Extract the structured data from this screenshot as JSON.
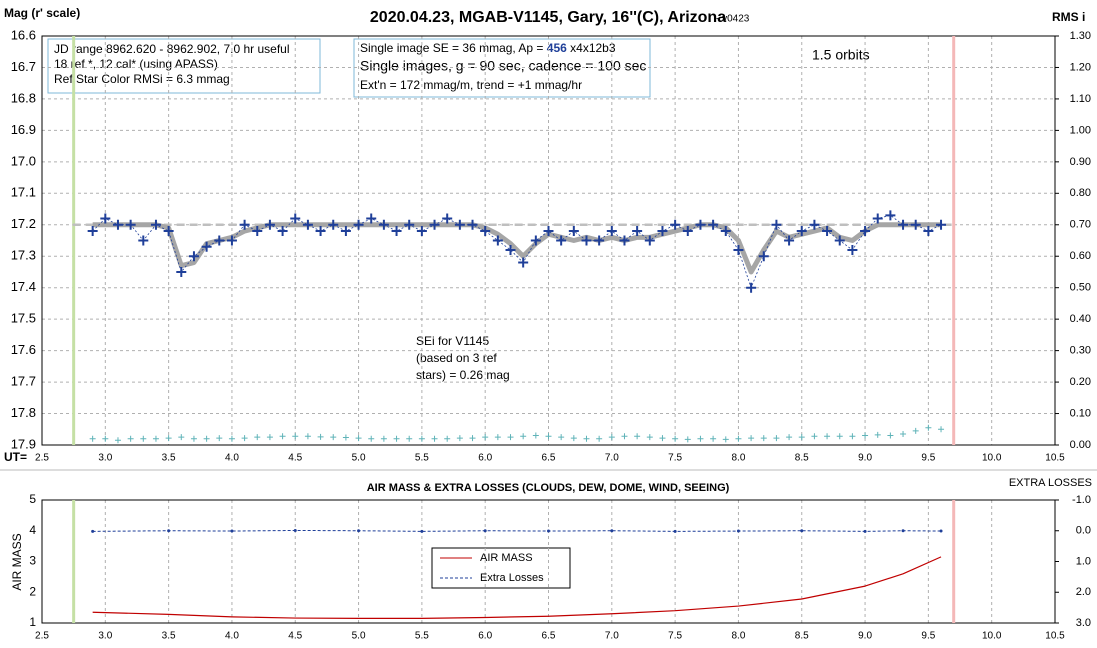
{
  "chart_data": [
    {
      "type": "scatter",
      "title": "2020.04.23, MGAB-V1145, Gary, 16''(C), Arizona",
      "title_suffix": " - v0423",
      "ylabel": "Mag (r' scale)",
      "y2label": "RMS i",
      "xlabel": "UT=",
      "info_box": [
        "JD range 8962.620 - 8962.902, 7.0 hr useful",
        "18 ref *, 12 cal* (using APASS)",
        "Ref Star Color RMSi = 6.3 mmag"
      ],
      "se_box": [
        "Single image SE = 36 mmag, Ap = ",
        "456",
        " x4x12b3"
      ],
      "se_lines": [
        "Single images, g = 90 sec, cadence = 100 sec",
        "Ext'n = 172 mmag/m, trend = +1 mmag/hr"
      ],
      "orbits_note": "1.5 orbits",
      "sei_note": [
        "SEi for V1145",
        "(based on 3 ref",
        "stars) = 0.26 mag"
      ],
      "xlim": [
        2.5,
        10.5
      ],
      "xticks": [
        2.5,
        {
          "value": 3,
          "label": "3.0"
        },
        3.5,
        {
          "value": 4,
          "label": "4.0"
        },
        4.5,
        {
          "value": 5,
          "label": "5.0"
        },
        5.5,
        {
          "value": 6,
          "label": "6.0"
        },
        6.5,
        {
          "value": 7,
          "label": "7.0"
        },
        7.5,
        {
          "value": 8,
          "label": "8.0"
        },
        8.5,
        {
          "value": 9,
          "label": "9.0"
        },
        9.5,
        {
          "value": 10,
          "label": "10.0"
        },
        10.5
      ],
      "ylim": [
        17.9,
        16.6
      ],
      "yticks": [
        16.6,
        16.7,
        16.8,
        16.9,
        {
          "value": 17,
          "label": "17.0"
        },
        17.1,
        17.2,
        17.3,
        17.4,
        17.5,
        17.6,
        17.7,
        17.8,
        17.9
      ],
      "y2lim": [
        0,
        1.3
      ],
      "y2ticks": [
        {
          "value": 1.3,
          "label": "1.30"
        },
        {
          "value": 1.2,
          "label": "1.20"
        },
        {
          "value": 1.1,
          "label": "1.10"
        },
        {
          "value": 1,
          "label": "1.00"
        },
        {
          "value": 0.9,
          "label": "0.90"
        },
        {
          "value": 0.8,
          "label": "0.80"
        },
        {
          "value": 0.7,
          "label": "0.70"
        },
        {
          "value": 0.6,
          "label": "0.60"
        },
        {
          "value": 0.5,
          "label": "0.50"
        },
        {
          "value": 0.4,
          "label": "0.40"
        },
        {
          "value": 0.3,
          "label": "0.30"
        },
        {
          "value": 0.2,
          "label": "0.20"
        },
        {
          "value": 0.1,
          "label": "0.10"
        },
        {
          "value": 0,
          "label": "0.00"
        }
      ],
      "xgrid": true,
      "ygrid": true,
      "ref_line": 17.2,
      "vlines": [
        {
          "x": 2.75,
          "color": "#c5e0a5"
        },
        {
          "x": 9.7,
          "color": "#f4b8b8"
        }
      ],
      "x": [
        2.9,
        3.0,
        3.1,
        3.2,
        3.3,
        3.4,
        3.5,
        3.6,
        3.7,
        3.8,
        3.9,
        4.0,
        4.1,
        4.2,
        4.3,
        4.4,
        4.5,
        4.6,
        4.7,
        4.8,
        4.9,
        5.0,
        5.1,
        5.2,
        5.3,
        5.4,
        5.5,
        5.6,
        5.7,
        5.8,
        5.9,
        6.0,
        6.1,
        6.2,
        6.3,
        6.4,
        6.5,
        6.6,
        6.7,
        6.8,
        6.9,
        7.0,
        7.1,
        7.2,
        7.3,
        7.4,
        7.5,
        7.6,
        7.7,
        7.8,
        7.9,
        8.0,
        8.1,
        8.2,
        8.3,
        8.4,
        8.5,
        8.6,
        8.7,
        8.8,
        8.9,
        9.0,
        9.1,
        9.2,
        9.3,
        9.4,
        9.5,
        9.6
      ],
      "series": [
        {
          "color": "#a6a6a6",
          "line": "thick",
          "marker": "none",
          "values": [
            17.2,
            17.2,
            17.2,
            17.2,
            17.2,
            17.2,
            17.21,
            17.33,
            17.32,
            17.26,
            17.25,
            17.24,
            17.22,
            17.21,
            17.2,
            17.2,
            17.2,
            17.2,
            17.2,
            17.2,
            17.2,
            17.2,
            17.2,
            17.2,
            17.2,
            17.2,
            17.2,
            17.2,
            17.2,
            17.2,
            17.2,
            17.21,
            17.23,
            17.26,
            17.3,
            17.26,
            17.23,
            17.24,
            17.25,
            17.24,
            17.25,
            17.24,
            17.25,
            17.24,
            17.24,
            17.23,
            17.22,
            17.21,
            17.2,
            17.2,
            17.21,
            17.25,
            17.35,
            17.28,
            17.22,
            17.24,
            17.23,
            17.22,
            17.21,
            17.24,
            17.25,
            17.22,
            17.2,
            17.2,
            17.2,
            17.2,
            17.2,
            17.2
          ]
        },
        {
          "color": "#1f3f99",
          "line": "dotted",
          "marker": "plus",
          "values": [
            17.22,
            17.18,
            17.2,
            17.2,
            17.25,
            17.2,
            17.22,
            17.35,
            17.3,
            17.27,
            17.25,
            17.25,
            17.2,
            17.22,
            17.2,
            17.22,
            17.18,
            17.2,
            17.22,
            17.2,
            17.22,
            17.2,
            17.18,
            17.2,
            17.22,
            17.2,
            17.22,
            17.2,
            17.18,
            17.2,
            17.2,
            17.22,
            17.25,
            17.28,
            17.32,
            17.25,
            17.22,
            17.25,
            17.22,
            17.25,
            17.25,
            17.22,
            17.25,
            17.22,
            17.25,
            17.22,
            17.2,
            17.22,
            17.2,
            17.2,
            17.22,
            17.28,
            17.4,
            17.3,
            17.2,
            17.25,
            17.22,
            17.2,
            17.22,
            17.25,
            17.28,
            17.22,
            17.18,
            17.17,
            17.2,
            17.2,
            17.22,
            17.2
          ]
        },
        {
          "color": "#5fb3b8",
          "line": "none",
          "marker": "plus",
          "axis": "y2",
          "values": [
            0.02,
            0.02,
            0.015,
            0.02,
            0.02,
            0.02,
            0.022,
            0.025,
            0.02,
            0.02,
            0.022,
            0.02,
            0.022,
            0.025,
            0.025,
            0.028,
            0.028,
            0.028,
            0.026,
            0.025,
            0.024,
            0.022,
            0.02,
            0.02,
            0.02,
            0.02,
            0.02,
            0.02,
            0.02,
            0.022,
            0.022,
            0.025,
            0.025,
            0.025,
            0.028,
            0.03,
            0.028,
            0.025,
            0.022,
            0.02,
            0.02,
            0.025,
            0.028,
            0.028,
            0.025,
            0.022,
            0.02,
            0.018,
            0.02,
            0.02,
            0.018,
            0.02,
            0.022,
            0.022,
            0.022,
            0.025,
            0.025,
            0.028,
            0.028,
            0.028,
            0.028,
            0.03,
            0.032,
            0.03,
            0.035,
            0.045,
            0.055,
            0.05
          ]
        }
      ]
    },
    {
      "type": "line",
      "title": "AIR MASS & EXTRA LOSSES (CLOUDS, DEW, DOME, WIND, SEEING)",
      "ylabel": "AIR MASS",
      "y2label": "EXTRA LOSSES",
      "xlim": [
        2.5,
        10.5
      ],
      "xticks": [
        2.5,
        {
          "value": 3,
          "label": "3.0"
        },
        3.5,
        {
          "value": 4,
          "label": "4.0"
        },
        4.5,
        {
          "value": 5,
          "label": "5.0"
        },
        5.5,
        {
          "value": 6,
          "label": "6.0"
        },
        6.5,
        {
          "value": 7,
          "label": "7.0"
        },
        7.5,
        {
          "value": 8,
          "label": "8.0"
        },
        8.5,
        {
          "value": 9,
          "label": "9.0"
        },
        9.5,
        {
          "value": 10,
          "label": "10.0"
        },
        10.5
      ],
      "ylim": [
        1,
        5
      ],
      "yticks": [
        1,
        2,
        3,
        4,
        5
      ],
      "y2lim": [
        3,
        -1
      ],
      "y2ticks": [
        {
          "value": -1,
          "label": "-1.0"
        },
        {
          "value": 0,
          "label": "0.0"
        },
        {
          "value": 1,
          "label": "1.0"
        },
        {
          "value": 2,
          "label": "2.0"
        },
        {
          "value": 3,
          "label": "3.0"
        }
      ],
      "xgrid": true,
      "ygrid": false,
      "vlines": [
        {
          "x": 2.75,
          "color": "#c5e0a5"
        },
        {
          "x": 9.7,
          "color": "#f4b8b8"
        }
      ],
      "x": [
        2.9,
        3.5,
        4.0,
        4.5,
        5.0,
        5.5,
        6.0,
        6.5,
        7.0,
        7.5,
        8.0,
        8.5,
        9.0,
        9.3,
        9.6
      ],
      "series": [
        {
          "name": "AIR MASS",
          "color": "#c00000",
          "line": "solid",
          "marker": "none",
          "values": [
            1.35,
            1.28,
            1.2,
            1.16,
            1.15,
            1.15,
            1.18,
            1.22,
            1.3,
            1.4,
            1.55,
            1.78,
            2.2,
            2.6,
            3.15
          ]
        },
        {
          "name": "Extra Losses",
          "color": "#1f3f99",
          "line": "dashed",
          "marker": "dot",
          "axis": "y2",
          "values": [
            0.02,
            0.0,
            0.01,
            -0.01,
            0.0,
            0.02,
            0.0,
            0.01,
            0.0,
            0.02,
            0.01,
            0.0,
            0.02,
            0.0,
            0.01
          ]
        }
      ]
    }
  ]
}
